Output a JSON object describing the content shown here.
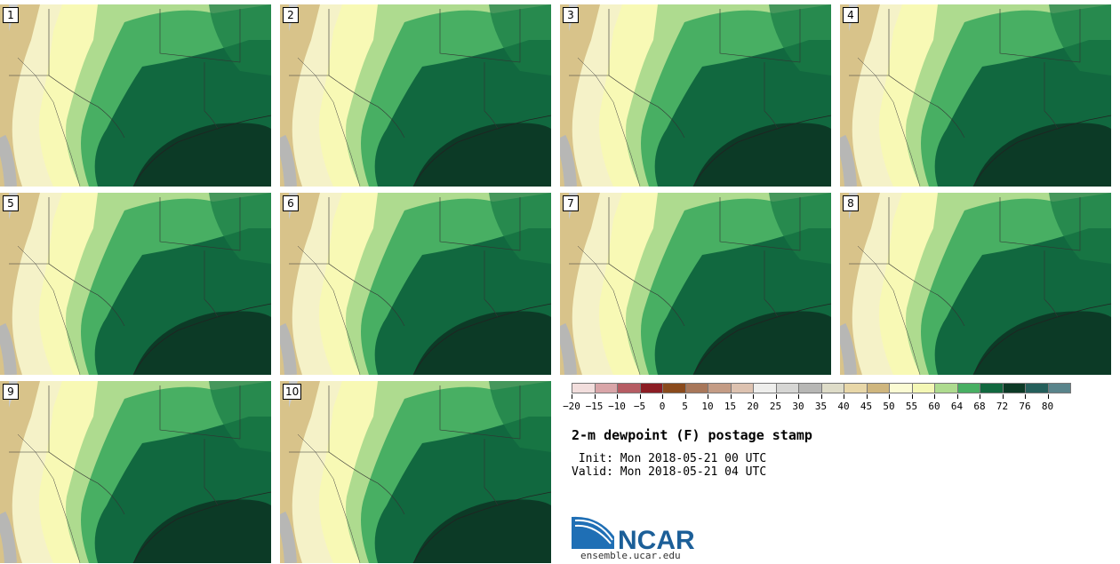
{
  "panels": [
    {
      "label": "1"
    },
    {
      "label": "2"
    },
    {
      "label": "3"
    },
    {
      "label": "4"
    },
    {
      "label": "5"
    },
    {
      "label": "6"
    },
    {
      "label": "7"
    },
    {
      "label": "8"
    },
    {
      "label": "9"
    },
    {
      "label": "10"
    }
  ],
  "legend": {
    "colors": [
      "#f2dedd",
      "#d9a5a8",
      "#b65c63",
      "#8c1d24",
      "#8a4a1c",
      "#a8775a",
      "#c49c85",
      "#ddc2b0",
      "#eeeeec",
      "#d6d6d4",
      "#b7b7b5",
      "#dedcc8",
      "#e8d7a8",
      "#cfb67e",
      "#fbfbd3",
      "#f4f7b5",
      "#aedb8f",
      "#48af63",
      "#11683f",
      "#0c3a26",
      "#245f5b",
      "#59848b"
    ],
    "ticks": [
      "−20",
      "−15",
      "−10",
      "−5",
      "0",
      "5",
      "10",
      "15",
      "20",
      "25",
      "30",
      "35",
      "40",
      "45",
      "50",
      "55",
      "60",
      "64",
      "68",
      "72",
      "76",
      "80"
    ]
  },
  "title": "2-m dewpoint (F) postage stamp",
  "init": " Init: Mon 2018-05-21 00 UTC",
  "valid": "Valid: Mon 2018-05-21 04 UTC",
  "logo_text": "NCAR",
  "site": "ensemble.ucar.edu",
  "icons": {
    "logo": "ncar-logo-icon"
  }
}
